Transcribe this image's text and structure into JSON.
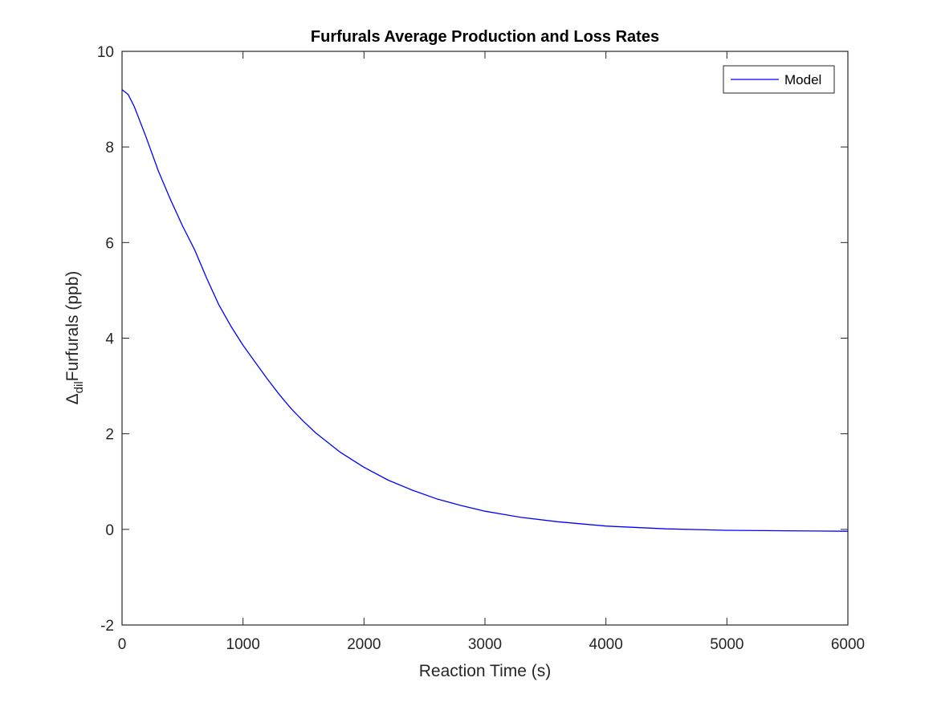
{
  "chart_data": {
    "type": "line",
    "title": "Furfurals Average Production and Loss Rates",
    "xlabel": "Reaction Time (s)",
    "ylabel_parts": [
      "Δ",
      "dil",
      "Furfurals (ppb)"
    ],
    "xlim": [
      0,
      6000
    ],
    "ylim": [
      -2,
      10
    ],
    "x_ticks": [
      0,
      1000,
      2000,
      3000,
      4000,
      5000,
      6000
    ],
    "y_ticks": [
      -2,
      0,
      2,
      4,
      6,
      8,
      10
    ],
    "x_tick_labels": [
      "0",
      "1000",
      "2000",
      "3000",
      "4000",
      "5000",
      "6000"
    ],
    "y_tick_labels": [
      "-2",
      "0",
      "2",
      "4",
      "6",
      "8",
      "10"
    ],
    "grid": false,
    "legend_position": "top-right",
    "series": [
      {
        "name": "Model",
        "color": "#0000ff",
        "x": [
          0,
          50,
          100,
          200,
          300,
          400,
          500,
          600,
          700,
          800,
          900,
          1000,
          1100,
          1200,
          1300,
          1400,
          1500,
          1600,
          1800,
          2000,
          2200,
          2400,
          2600,
          2800,
          3000,
          3300,
          3600,
          4000,
          4500,
          5000,
          5500,
          6000
        ],
        "y": [
          9.2,
          9.1,
          8.85,
          8.2,
          7.5,
          6.9,
          6.35,
          5.85,
          5.25,
          4.7,
          4.25,
          3.85,
          3.5,
          3.15,
          2.82,
          2.52,
          2.26,
          2.02,
          1.62,
          1.3,
          1.03,
          0.82,
          0.64,
          0.5,
          0.38,
          0.25,
          0.16,
          0.07,
          0.01,
          -0.02,
          -0.03,
          -0.04
        ]
      }
    ]
  }
}
